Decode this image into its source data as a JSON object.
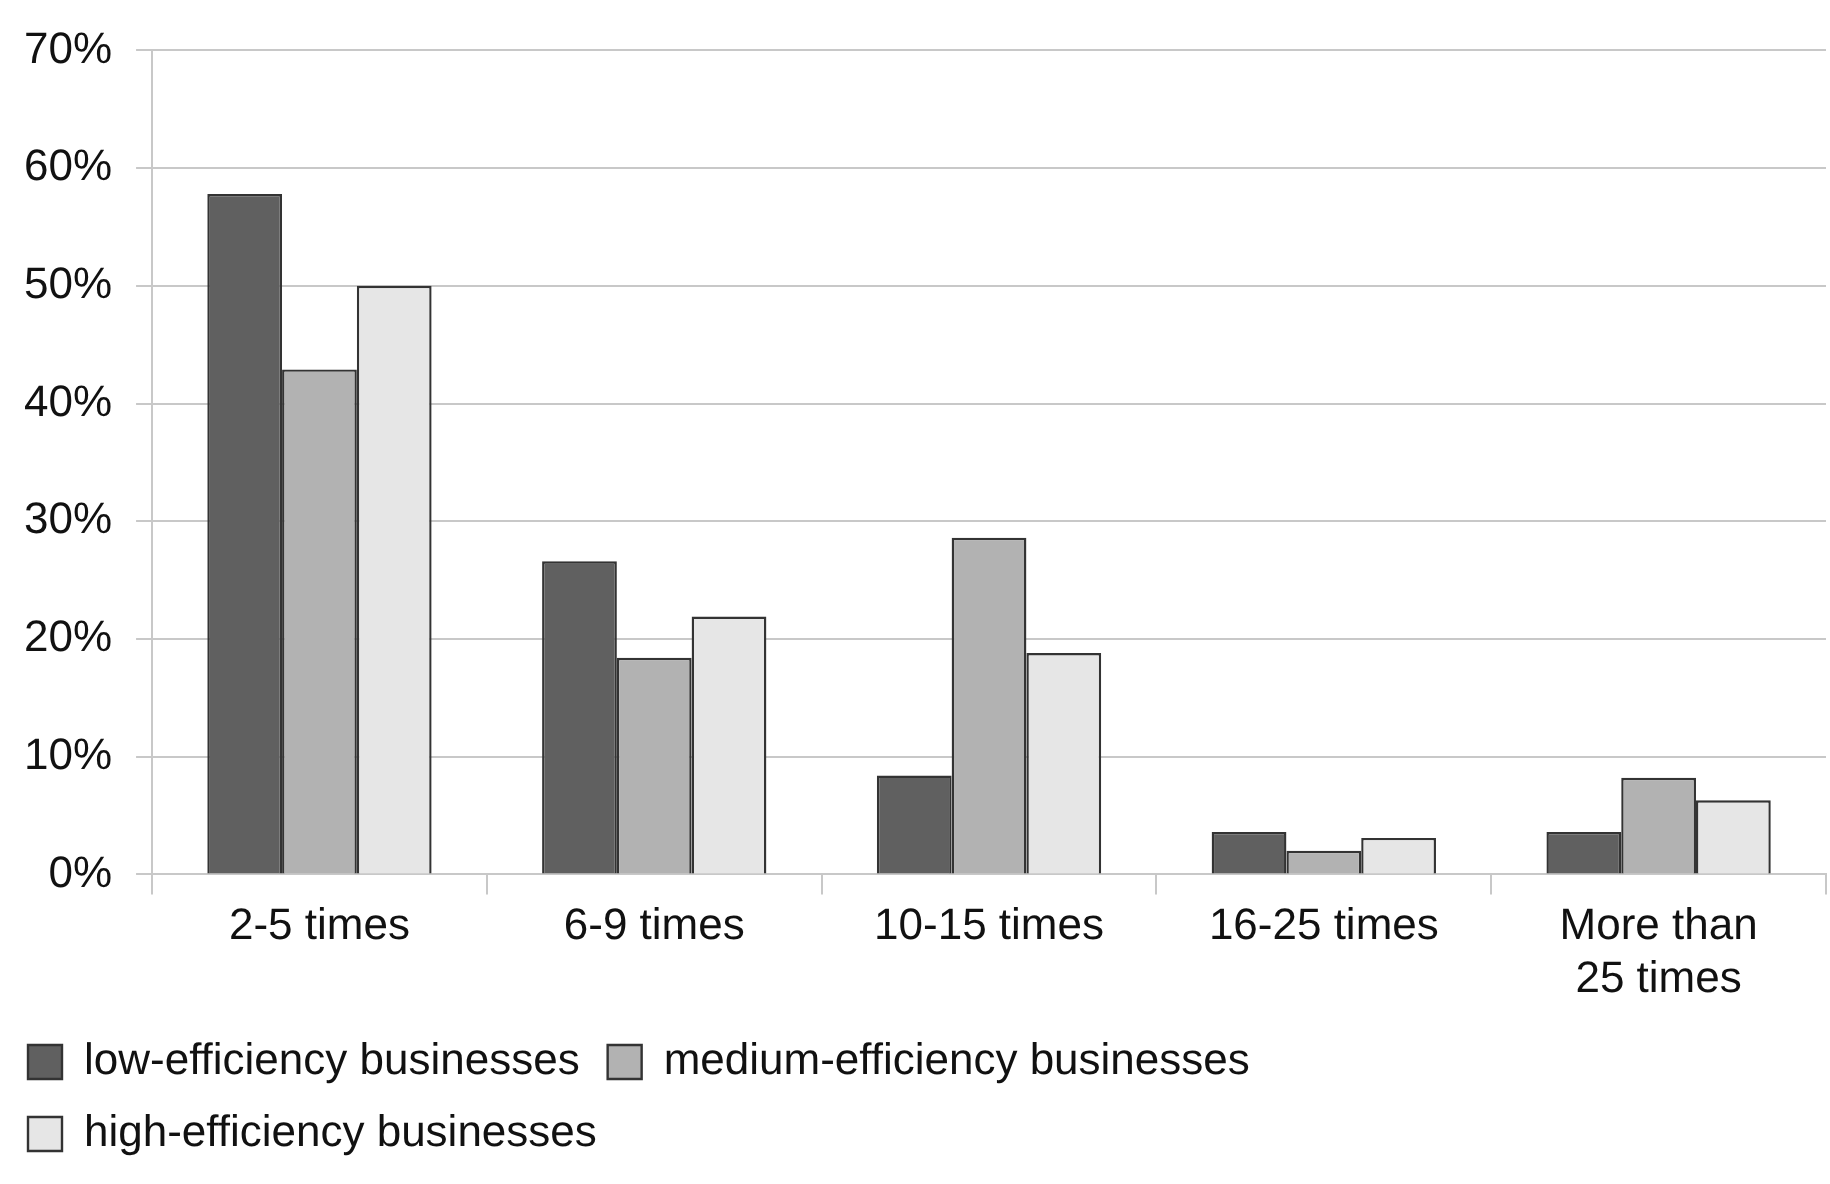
{
  "chart_data": {
    "type": "bar",
    "categories": [
      "2-5 times",
      "6-9 times",
      "10-15 times",
      "16-25 times",
      "More than 25 times"
    ],
    "series": [
      {
        "name": "low-efficiency businesses",
        "color": "#606060",
        "values": [
          57.8,
          26.6,
          8.4,
          3.6,
          3.6
        ]
      },
      {
        "name": "medium-efficiency businesses",
        "color": "#b2b2b2",
        "values": [
          42.9,
          18.4,
          28.6,
          2.0,
          8.2
        ]
      },
      {
        "name": "high-efficiency businesses",
        "color": "#e6e6e6",
        "values": [
          50,
          21.9,
          18.8,
          3.1,
          6.3
        ]
      }
    ],
    "ylim": [
      0,
      70
    ],
    "yticks": [
      {
        "value": 0,
        "label": "0%"
      },
      {
        "value": 10,
        "label": "10%"
      },
      {
        "value": 20,
        "label": "20%"
      },
      {
        "value": 30,
        "label": "30%"
      },
      {
        "value": 40,
        "label": "40%"
      },
      {
        "value": 50,
        "label": "50%"
      },
      {
        "value": 60,
        "label": "60%"
      },
      {
        "value": 70,
        "label": "70%"
      }
    ],
    "grid": "y",
    "legend": "bottom"
  }
}
